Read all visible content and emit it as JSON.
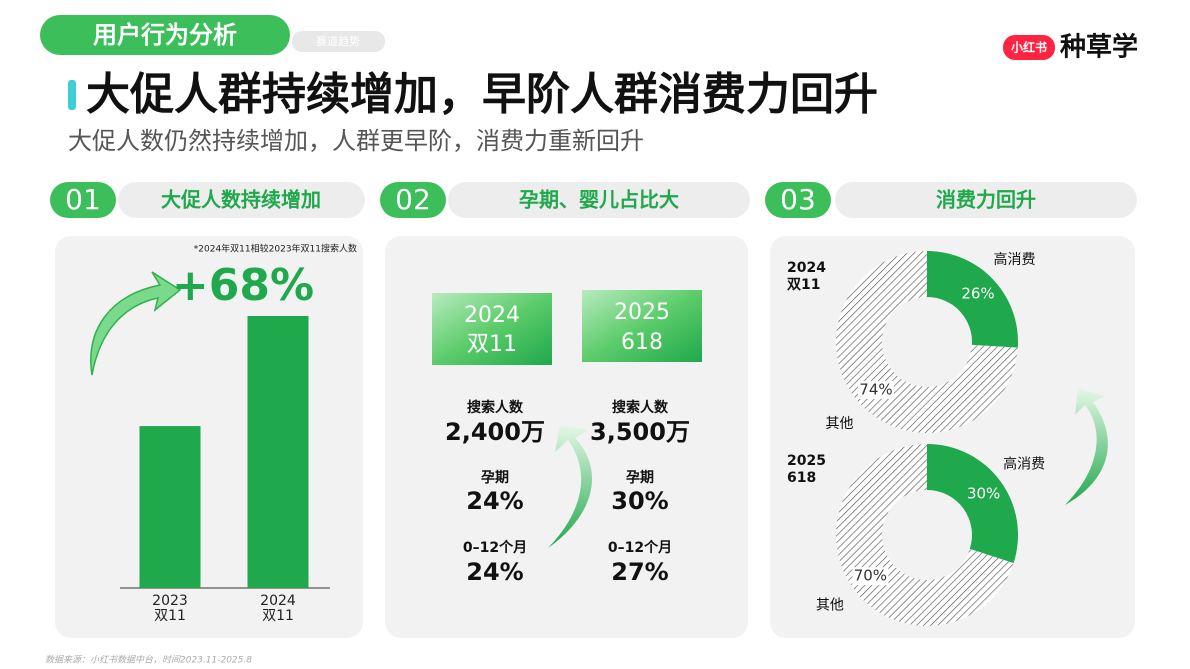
{
  "header": {
    "section": "用户行为分析",
    "tag": "赛道趋势",
    "brand_badge": "小红书",
    "brand": "种草学"
  },
  "title": "大促人群持续增加，早阶人群消费力回升",
  "subtitle": "大促人数仍然持续增加，人群更早阶，消费力重新回升",
  "panels": [
    {
      "number": "01",
      "heading": "大促人数持续增加"
    },
    {
      "number": "02",
      "heading": "孕期、婴儿占比大"
    },
    {
      "number": "03",
      "heading": "消费力回升"
    }
  ],
  "growth": {
    "note": "*2024年双11相较2023年双11搜索人数",
    "value": "+68%"
  },
  "periods": [
    {
      "name": [
        "2024",
        "双11"
      ],
      "stats": [
        {
          "label": "搜索人数",
          "value": "2,400万"
        },
        {
          "label": "孕期",
          "value": "24%"
        },
        {
          "label": "0–12个月",
          "value": "24%"
        }
      ]
    },
    {
      "name": [
        "2025",
        "618"
      ],
      "stats": [
        {
          "label": "搜索人数",
          "value": "3,500万"
        },
        {
          "label": "孕期",
          "value": "30%"
        },
        {
          "label": "0–12个月",
          "value": "27%"
        }
      ]
    }
  ],
  "chart_data": [
    {
      "type": "bar",
      "categories": [
        [
          "2023",
          "双11"
        ],
        [
          "2024",
          "双11"
        ]
      ],
      "values": [
        100,
        168
      ],
      "color": "#1fa84c"
    },
    {
      "type": "pie",
      "title": [
        "2024",
        "双11"
      ],
      "categories": [
        "高消费",
        "其他"
      ],
      "values": [
        26,
        74
      ],
      "value_labels": [
        "26%",
        "74%"
      ],
      "colors": [
        "#1fa84c",
        "#555555"
      ],
      "hatch": [
        false,
        true
      ]
    },
    {
      "type": "pie",
      "title": [
        "2025",
        "618"
      ],
      "categories": [
        "高消费",
        "其他"
      ],
      "values": [
        30,
        70
      ],
      "value_labels": [
        "30%",
        "70%"
      ],
      "colors": [
        "#1fa84c",
        "#555555"
      ],
      "hatch": [
        false,
        true
      ]
    }
  ],
  "footer": "数据来源：小红书数据中台，时间2023.11-2025.8"
}
